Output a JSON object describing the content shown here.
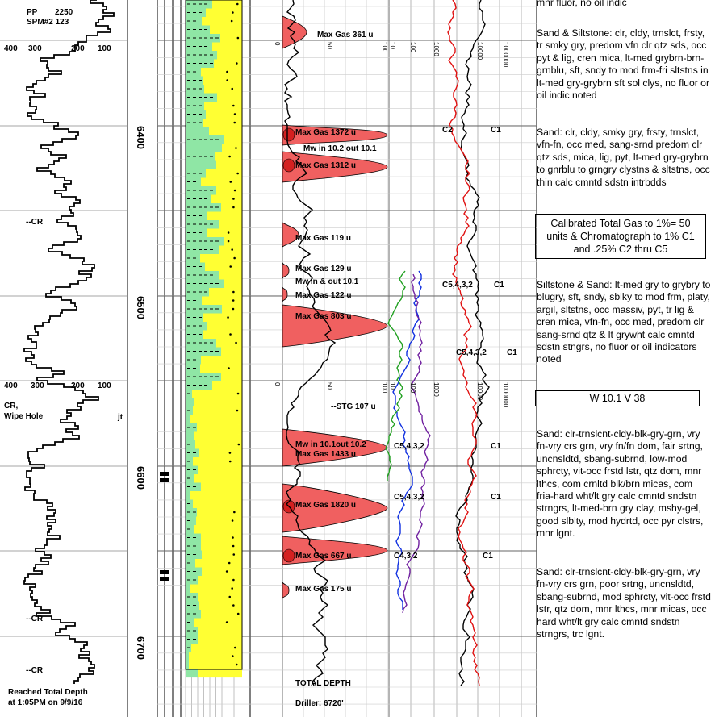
{
  "header": {
    "pp_label": "PP",
    "pp_value": "2250",
    "spm_label": "SPM#2 123",
    "scale_top": [
      "400",
      "300",
      "200",
      "100"
    ],
    "scale_mid": [
      "400",
      "300",
      "200",
      "100"
    ]
  },
  "depth_ticks": [
    "6400",
    "6500",
    "6600",
    "6700"
  ],
  "left_notes": {
    "cr": "--CR",
    "cr_wipe_1": "CR,",
    "cr_wipe_2": "Wipe Hole",
    "jt": "jt",
    "reached_1": "Reached Total Depth",
    "reached_2": "at 1:05PM on 9/9/16"
  },
  "gas_scale": [
    "0",
    "50",
    "100"
  ],
  "chrom_scale": [
    "10",
    "100",
    "1000",
    "10000",
    "100000",
    "1000000"
  ],
  "gas_annotations": {
    "max_gas_361": "Max Gas 361 u",
    "max_gas_1372": "Max Gas 1372 u",
    "mw_10_2": "Mw in 10.2 out 10.1",
    "max_gas_1312": "Max Gas 1312 u",
    "max_gas_119": "Max Gas 119 u",
    "max_gas_129": "Max Gas 129 u",
    "mw_in_out": "Mw in & out 10.1",
    "max_gas_122": "Max Gas 122 u",
    "max_gas_803": "Max Gas 803 u",
    "stg": "--STG 107 u",
    "mw_10_1": "Mw in 10.1out 10.2",
    "max_gas_1433": "Max Gas 1433 u",
    "max_gas_1820": "Max Gas 1820 u",
    "max_gas_667": "Max Gas 667 u",
    "max_gas_175": "Max Gas 175 u",
    "total_depth": "TOTAL DEPTH",
    "driller": "Driller: 6720'"
  },
  "chrom_labels": {
    "c2": "C2",
    "c1": "C1",
    "c5432": "C5,4,3,2",
    "c432": "C4,3,2"
  },
  "descriptions": [
    "mnr fluor, no oil indic",
    "Sand & Siltstone: clr, cldy, trnslct, frsty, tr smky gry, predom vfn clr qtz sds, occ pyt & lig, cren mica, lt-med grybrn-brn-grnblu, sft, sndy to mod frm-fri sltstns in lt-med gry-grybrn sft sol clys, no fluor or oil indic noted",
    "Sand: clr, cldy, smky gry, frsty, trnslct, vfn-fn, occ med, sang-srnd predom clr qtz sds, mica, lig, pyt, lt-med gry-grybrn to gnrblu to grngry clystns & sltstns, occ thin calc cmntd sdstn intrbdds",
    "Calibrated Total Gas to 1%= 50 units & Chromatograph to 1% C1 and .25% C2 thru C5",
    "Siltstone & Sand: lt-med gry to grybry to blugry, sft, sndy, sblky to mod frm, platy, argil, sltstns, occ massiv, pyt, tr lig & cren mica, vfn-fn, occ med, predom clr sang-srnd qtz & lt grywht calc cmntd sdstn stngrs, no fluor or oil indicators noted",
    "W 10.1   V 38",
    "Sand: clr-trnslcnt-cldy-blk-gry-grn, vry fn-vry crs grn, vry fn/fn dom, fair srtng, uncnsldtd, sbang-subrnd, low-mod sphrcty, vit-occ frstd lstr, qtz dom, mnr lthcs, com crnltd  blk/brn micas, com fria-hard wht/lt gry calc cmntd sndstn strngrs,  lt-med-brn gry clay, mshy-gel, good slblty, mod hydrtd, occ pyr clstrs, mnr  lgnt.",
    "Sand: clr-trnslcnt-cldy-blk-gry-grn, vry fn-vry crs grn, poor srtng, uncnsldtd, sbang-subrnd,  mod sphrcty, vit-occ frstd lstr, qtz dom, mnr lthcs, mnr micas, occ hard wht/lt gry calc cmntd sndstn strngrs,  trc  lgnt."
  ],
  "colors": {
    "gas_fill": "#f06060",
    "gas_fill_dark": "#d42020",
    "lithology_sand": "#ffff33",
    "lithology_silt": "#8fe6a5",
    "c1": "#000000",
    "c2": "#e01010",
    "c3": "#1030e0",
    "c4": "#7020a0",
    "c5": "#20a020"
  }
}
